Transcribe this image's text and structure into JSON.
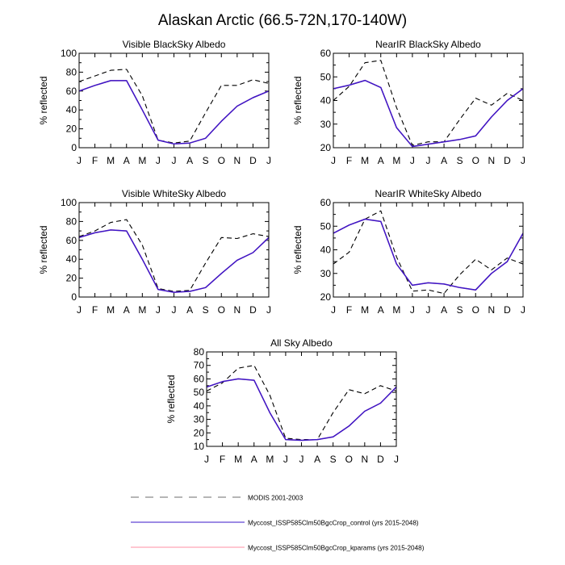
{
  "figure": {
    "title": "Alaskan Arctic (66.5-72N,170-140W)"
  },
  "legend": {
    "items": [
      {
        "label": "MODIS 2001-2003",
        "color": "#000000",
        "dash": "dashed"
      },
      {
        "label": "Myccost_ISSP585Clm50BgcCrop_control (yrs 2015-2048)",
        "color": "#3a16c8",
        "dash": "solid"
      },
      {
        "label": "Myccost_ISSP585Clm50BgcCrop_kparams (yrs 2015-2048)",
        "color": "#ff8fa3",
        "dash": "solid"
      }
    ]
  },
  "chart_data": [
    {
      "type": "line",
      "title": "Visible BlackSky Albedo",
      "xlabel": "",
      "ylabel": "% reflected",
      "categories": [
        "J",
        "F",
        "M",
        "A",
        "M",
        "J",
        "J",
        "A",
        "S",
        "O",
        "N",
        "D",
        "J"
      ],
      "ylim": [
        0,
        100
      ],
      "yticks": [
        0,
        20,
        40,
        60,
        80,
        100
      ],
      "series": [
        {
          "name": "MODIS 2001-2003",
          "values": [
            70,
            76,
            82,
            83,
            55,
            8,
            5,
            7,
            37,
            66,
            66,
            72,
            68
          ]
        },
        {
          "name": "Myccost_ISSP585Clm50BgcCrop_control (yrs 2015-2048)",
          "values": [
            60,
            66,
            71,
            71,
            40,
            8,
            4,
            5,
            10,
            28,
            44,
            53,
            60
          ]
        },
        {
          "name": "Myccost_ISSP585Clm50BgcCrop_kparams (yrs 2015-2048)",
          "values": [
            60,
            66,
            71,
            71,
            40,
            8,
            4,
            5,
            10,
            28,
            44,
            53,
            60
          ]
        }
      ]
    },
    {
      "type": "line",
      "title": "NearIR BlackSky Albedo",
      "xlabel": "",
      "ylabel": "% reflected",
      "categories": [
        "J",
        "F",
        "M",
        "A",
        "M",
        "J",
        "J",
        "A",
        "S",
        "O",
        "N",
        "D",
        "J"
      ],
      "ylim": [
        20,
        60
      ],
      "yticks": [
        20,
        30,
        40,
        50,
        60
      ],
      "series": [
        {
          "name": "MODIS 2001-2003",
          "values": [
            40,
            46,
            56,
            57,
            37,
            21,
            22.5,
            22.5,
            32,
            41,
            38,
            43,
            40
          ]
        },
        {
          "name": "Myccost_ISSP585Clm50BgcCrop_control (yrs 2015-2048)",
          "values": [
            45,
            46.5,
            48.5,
            45.5,
            28.5,
            20.5,
            21.5,
            22.5,
            23.5,
            25,
            33,
            40,
            45
          ]
        },
        {
          "name": "Myccost_ISSP585Clm50BgcCrop_kparams (yrs 2015-2048)",
          "values": [
            45,
            46.5,
            48.5,
            45.5,
            28.5,
            20.5,
            21.5,
            22.5,
            23.5,
            25,
            33,
            40,
            45
          ]
        }
      ]
    },
    {
      "type": "line",
      "title": "Visible WhiteSky Albedo",
      "xlabel": "",
      "ylabel": "% reflected",
      "categories": [
        "J",
        "F",
        "M",
        "A",
        "M",
        "J",
        "J",
        "A",
        "S",
        "O",
        "N",
        "D",
        "J"
      ],
      "ylim": [
        0,
        100
      ],
      "yticks": [
        0,
        20,
        40,
        60,
        80,
        100
      ],
      "series": [
        {
          "name": "MODIS 2001-2003",
          "values": [
            64,
            70,
            79,
            82,
            55,
            9,
            6,
            7,
            36,
            63,
            62,
            67,
            64
          ]
        },
        {
          "name": "Myccost_ISSP585Clm50BgcCrop_control (yrs 2015-2048)",
          "values": [
            63,
            68,
            71,
            70,
            40,
            8,
            5,
            6,
            10,
            25,
            39,
            47,
            63
          ]
        },
        {
          "name": "Myccost_ISSP585Clm50BgcCrop_kparams (yrs 2015-2048)",
          "values": [
            63,
            68,
            71,
            70,
            40,
            8,
            5,
            6,
            10,
            25,
            39,
            47,
            63
          ]
        }
      ]
    },
    {
      "type": "line",
      "title": "NearIR WhiteSky Albedo",
      "xlabel": "",
      "ylabel": "% reflected",
      "categories": [
        "J",
        "F",
        "M",
        "A",
        "M",
        "J",
        "J",
        "A",
        "S",
        "O",
        "N",
        "D",
        "J"
      ],
      "ylim": [
        20,
        60
      ],
      "yticks": [
        20,
        30,
        40,
        50,
        60
      ],
      "series": [
        {
          "name": "MODIS 2001-2003",
          "values": [
            34,
            39,
            53,
            56.5,
            37,
            22.5,
            23,
            21.5,
            29.5,
            36,
            31.5,
            36.5,
            34
          ]
        },
        {
          "name": "Myccost_ISSP585Clm50BgcCrop_control (yrs 2015-2048)",
          "values": [
            47,
            50.5,
            53,
            52,
            34,
            25,
            26,
            25.5,
            24,
            23,
            30,
            35,
            47
          ]
        },
        {
          "name": "Myccost_ISSP585Clm50BgcCrop_kparams (yrs 2015-2048)",
          "values": [
            47,
            50.5,
            53,
            52,
            34,
            25,
            26,
            25.5,
            24,
            23,
            30,
            35,
            47
          ]
        }
      ]
    },
    {
      "type": "line",
      "title": "All Sky Albedo",
      "xlabel": "",
      "ylabel": "% reflected",
      "categories": [
        "J",
        "F",
        "M",
        "A",
        "M",
        "J",
        "J",
        "A",
        "S",
        "O",
        "N",
        "D",
        "J"
      ],
      "ylim": [
        10,
        80
      ],
      "yticks": [
        10,
        20,
        30,
        40,
        50,
        60,
        70,
        80
      ],
      "series": [
        {
          "name": "MODIS 2001-2003",
          "values": [
            51,
            57,
            68,
            70,
            48,
            16,
            15,
            15,
            35,
            52,
            49,
            55,
            51
          ]
        },
        {
          "name": "Myccost_ISSP585Clm50BgcCrop_control (yrs 2015-2048)",
          "values": [
            54,
            58,
            60,
            59,
            35,
            15,
            14.5,
            15,
            17,
            25,
            36,
            42,
            54
          ]
        },
        {
          "name": "Myccost_ISSP585Clm50BgcCrop_kparams (yrs 2015-2048)",
          "values": [
            54,
            58,
            60,
            59,
            35,
            15,
            14.5,
            15,
            17,
            25,
            36,
            42,
            54
          ]
        }
      ]
    }
  ]
}
